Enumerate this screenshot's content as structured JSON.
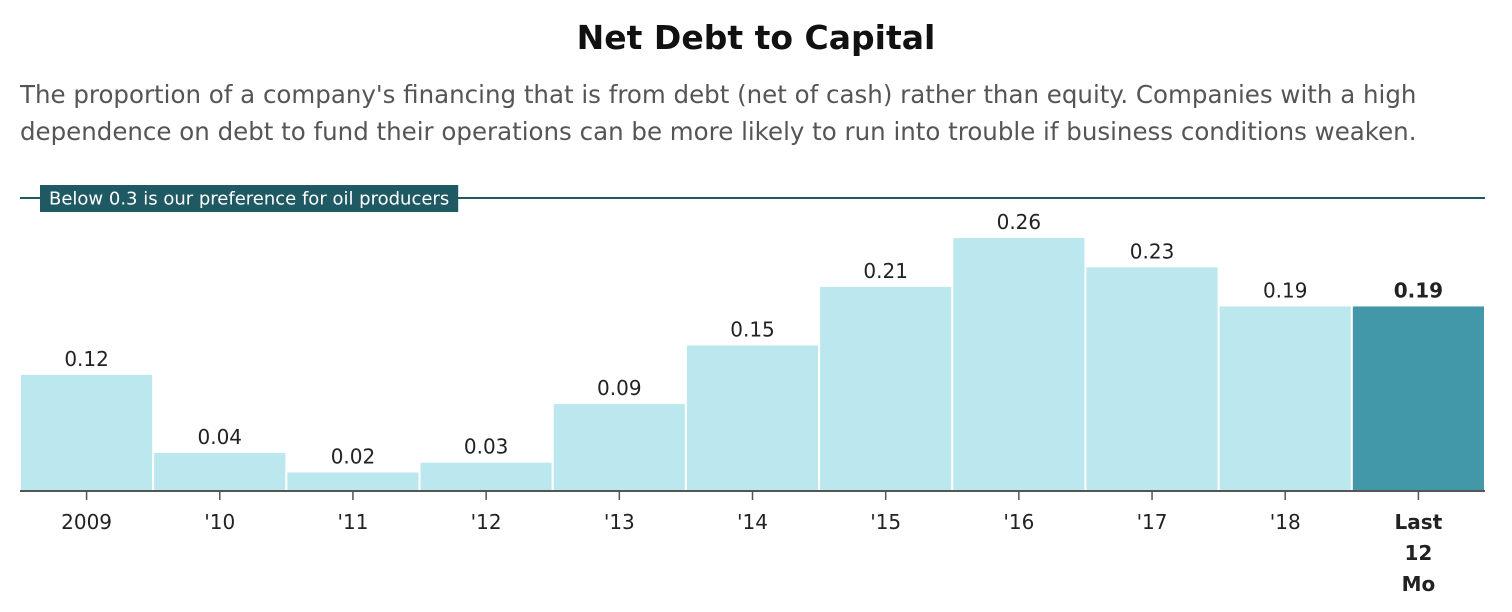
{
  "chart_data": {
    "type": "bar",
    "title": "Net Debt to Capital",
    "subtitle": "The proportion of a company's financing that is from debt (net of cash) rather than equity. Companies with a high dependence on debt to fund their operations can be more likely to run into trouble if business conditions weaken.",
    "categories": [
      "2009",
      "'10",
      "'11",
      "'12",
      "'13",
      "'14",
      "'15",
      "'16",
      "'17",
      "'18",
      "Last 12 Mo"
    ],
    "category_lines": [
      [
        "2009"
      ],
      [
        "'10"
      ],
      [
        "'11"
      ],
      [
        "'12"
      ],
      [
        "'13"
      ],
      [
        "'14"
      ],
      [
        "'15"
      ],
      [
        "'16"
      ],
      [
        "'17"
      ],
      [
        "'18"
      ],
      [
        "Last",
        "12",
        "Mo"
      ]
    ],
    "values": [
      0.12,
      0.04,
      0.02,
      0.03,
      0.09,
      0.15,
      0.21,
      0.26,
      0.23,
      0.19,
      0.19
    ],
    "value_labels": [
      "0.12",
      "0.04",
      "0.02",
      "0.03",
      "0.09",
      "0.15",
      "0.21",
      "0.26",
      "0.23",
      "0.19",
      "0.19"
    ],
    "highlight_index": 10,
    "ylim": [
      0,
      0.3
    ],
    "grid": false,
    "reference_line": {
      "value": 0.3,
      "label": "Below 0.3 is our preference for oil producers"
    },
    "colors": {
      "bar": "#bae8ee",
      "highlight": "#4298a8",
      "reference": "#1f5963",
      "axis": "#555555"
    }
  }
}
